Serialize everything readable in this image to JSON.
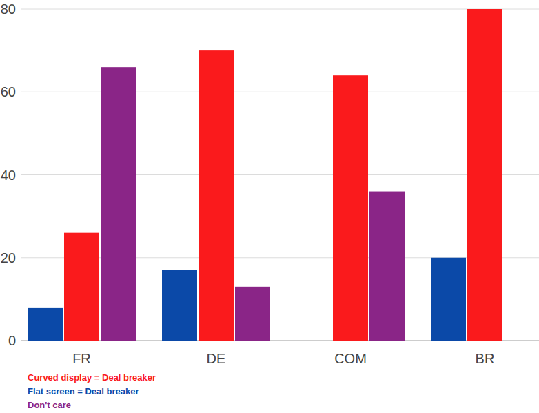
{
  "chart_data": {
    "type": "bar",
    "categories": [
      "FR",
      "DE",
      "COM",
      "BR"
    ],
    "series": [
      {
        "name": "Curved display = Deal breaker",
        "color": "#fa1a1c",
        "values": [
          26,
          70,
          64,
          80
        ]
      },
      {
        "name": "Flat screen = Deal breaker",
        "color": "#0b49a8",
        "values": [
          8,
          17,
          null,
          20
        ]
      },
      {
        "name": "Don't care",
        "color": "#8a2587",
        "values": [
          66,
          13,
          36,
          null
        ]
      }
    ],
    "ylim": [
      0,
      80
    ],
    "yticks": [
      0,
      20,
      40,
      60,
      80
    ],
    "grid": true,
    "legend": "bottom-left"
  }
}
